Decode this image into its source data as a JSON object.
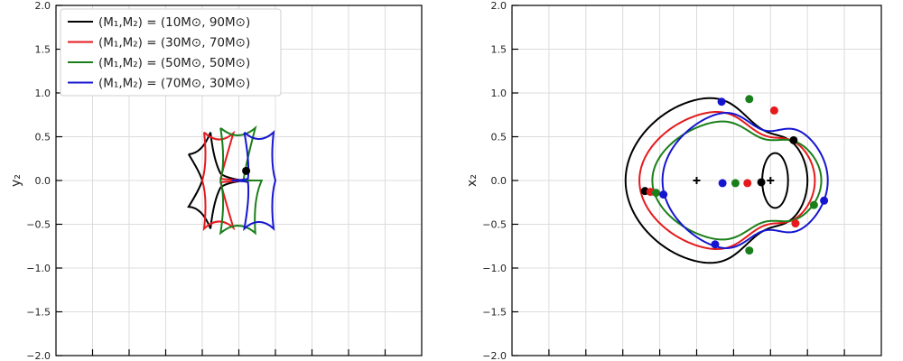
{
  "chart_data": [
    {
      "type": "line",
      "panel": "left",
      "ylabel": "y₂",
      "xlabel": "",
      "xlim": [
        -2,
        2
      ],
      "ylim": [
        -2,
        2
      ],
      "yticks": [
        -2.0,
        -1.5,
        -1.0,
        -0.5,
        0.0,
        0.5,
        1.0,
        1.5,
        2.0
      ],
      "ytick_labels": [
        "−2.0",
        "−1.5",
        "−1.0",
        "−0.5",
        "0.0",
        "0.5",
        "1.0",
        "1.5",
        "2.0"
      ],
      "xticks": [
        -1.6,
        -1.2,
        -0.8,
        -0.4,
        0.0,
        0.4,
        0.8,
        1.2,
        1.6
      ],
      "grid": true,
      "legend": {
        "placement": "top-left",
        "entries": [
          {
            "label": "(M₁,M₂) = (10M⊙, 90M⊙)",
            "color": "#000000"
          },
          {
            "label": "(M₁,M₂) = (30M⊙, 70M⊙)",
            "color": "#e41a1c"
          },
          {
            "label": "(M₁,M₂) = (50M⊙, 50M⊙)",
            "color": "#1a7f1a"
          },
          {
            "label": "(M₁,M₂) = (70M⊙, 30M⊙)",
            "color": "#1515d0"
          }
        ]
      },
      "series": [
        {
          "color": "#000000",
          "cusps": [
            [
              -0.55,
              0.3
            ],
            [
              -0.31,
              0.55
            ],
            [
              -0.55,
              -0.3
            ],
            [
              -0.31,
              -0.55
            ],
            [
              0.05,
              0.0
            ]
          ],
          "point": [
            0.08,
            0.11
          ]
        },
        {
          "color": "#e41a1c",
          "cusps": [
            [
              -0.38,
              0.55
            ],
            [
              -0.06,
              0.54
            ],
            [
              -0.38,
              -0.55
            ],
            [
              -0.06,
              -0.54
            ],
            [
              -0.4,
              0.0
            ],
            [
              0.15,
              0.0
            ]
          ]
        },
        {
          "color": "#1a7f1a",
          "cusps": [
            [
              -0.2,
              0.6
            ],
            [
              0.18,
              0.6
            ],
            [
              -0.2,
              -0.6
            ],
            [
              0.18,
              -0.6
            ],
            [
              -0.2,
              0.0
            ],
            [
              0.25,
              0.0
            ]
          ]
        },
        {
          "color": "#1515d0",
          "cusps": [
            [
              0.06,
              0.55
            ],
            [
              0.38,
              0.55
            ],
            [
              0.06,
              -0.55
            ],
            [
              0.38,
              -0.55
            ],
            [
              -0.08,
              0.0
            ],
            [
              0.4,
              0.0
            ]
          ]
        }
      ]
    },
    {
      "type": "line",
      "panel": "right",
      "ylabel": "x₂",
      "xlabel": "",
      "xlim": [
        -2,
        2
      ],
      "ylim": [
        -2,
        2
      ],
      "yticks": [
        -2.0,
        -1.5,
        -1.0,
        -0.5,
        0.0,
        0.5,
        1.0,
        1.5,
        2.0
      ],
      "ytick_labels": [
        "−2.0",
        "−1.5",
        "−1.0",
        "−0.5",
        "0.0",
        "0.5",
        "1.0",
        "1.5",
        "2.0"
      ],
      "xticks": [
        -1.6,
        -1.2,
        -0.8,
        -0.4,
        0.0,
        0.4,
        0.8,
        1.2,
        1.6
      ],
      "grid": true,
      "lens_positions": [
        [
          0.0,
          0.0
        ],
        [
          0.8,
          0.0
        ]
      ],
      "series": [
        {
          "color": "#000000",
          "outer_x": [
            -0.77,
            1.2
          ],
          "outer_height": 0.95,
          "images": [
            [
              -0.56,
              -0.12
            ],
            [
              0.7,
              -0.02
            ],
            [
              1.05,
              0.46
            ]
          ]
        },
        {
          "color": "#e41a1c",
          "outer_x": [
            -0.62,
            1.28
          ],
          "outer_height": 0.8,
          "images": [
            [
              -0.5,
              -0.13
            ],
            [
              0.55,
              -0.03
            ],
            [
              0.84,
              0.8
            ],
            [
              1.07,
              -0.49
            ]
          ]
        },
        {
          "color": "#1a7f1a",
          "outer_x": [
            -0.48,
            1.35
          ],
          "outer_height": 0.7,
          "images": [
            [
              -0.44,
              -0.14
            ],
            [
              0.42,
              -0.03
            ],
            [
              0.57,
              0.93
            ],
            [
              0.57,
              -0.8
            ],
            [
              1.27,
              -0.28
            ]
          ]
        },
        {
          "color": "#1515d0",
          "outer_x": [
            -0.37,
            1.42
          ],
          "outer_height": 0.82,
          "images": [
            [
              -0.36,
              -0.16
            ],
            [
              0.28,
              -0.03
            ],
            [
              0.27,
              0.9
            ],
            [
              0.2,
              -0.73
            ],
            [
              1.38,
              -0.23
            ]
          ]
        }
      ]
    }
  ]
}
